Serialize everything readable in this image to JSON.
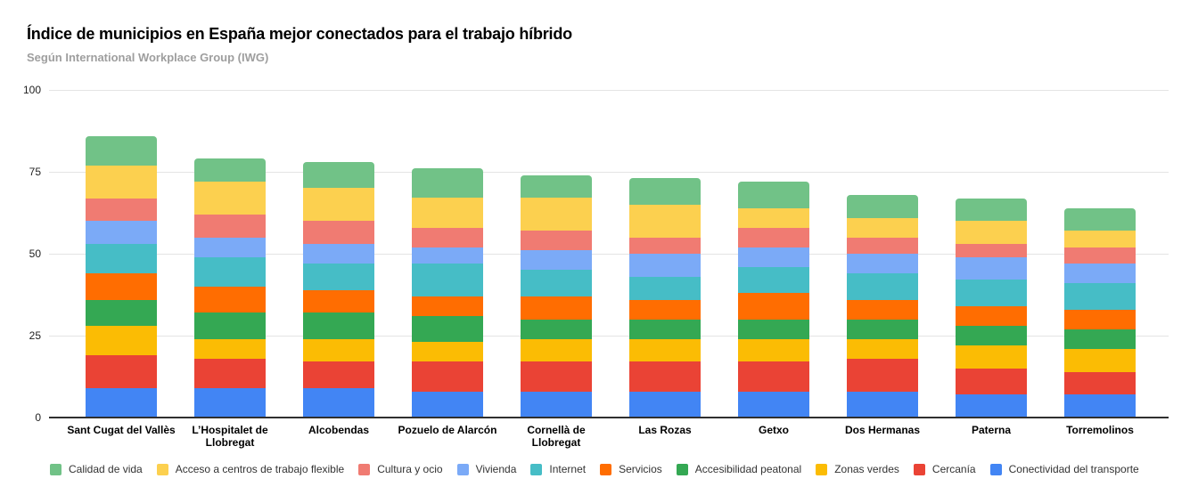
{
  "chart_data": {
    "type": "bar",
    "stacked": true,
    "title": "Índice de municipios en España mejor conectados para el trabajo híbrido",
    "subtitle": "Según International Workplace Group (IWG)",
    "categories": [
      "Sant Cugat del Vallès",
      "L’Hospitalet de Llobregat",
      "Alcobendas",
      "Pozuelo de Alarcón",
      "Cornellà de Llobregat",
      "Las Rozas",
      "Getxo",
      "Dos Hermanas",
      "Paterna",
      "Torremolinos"
    ],
    "totals": [
      86,
      79,
      78,
      76,
      74,
      73,
      72,
      68,
      67,
      64
    ],
    "series_stack_order": "bottom-to-top; legend shows reverse of this order",
    "series": [
      {
        "name": "Conectividad del transporte",
        "color": "#4285F4",
        "values": [
          9,
          9,
          9,
          8,
          8,
          8,
          8,
          8,
          7,
          7
        ]
      },
      {
        "name": "Cercanía",
        "color": "#EA4335",
        "values": [
          10,
          9,
          8,
          9,
          9,
          9,
          9,
          10,
          8,
          7
        ]
      },
      {
        "name": "Zonas verdes",
        "color": "#FBBC04",
        "values": [
          9,
          6,
          7,
          6,
          7,
          7,
          7,
          6,
          7,
          7
        ]
      },
      {
        "name": "Accesibilidad peatonal",
        "color": "#34A853",
        "values": [
          8,
          8,
          8,
          8,
          6,
          6,
          6,
          6,
          6,
          6
        ]
      },
      {
        "name": "Servicios",
        "color": "#FF6D01",
        "values": [
          8,
          8,
          7,
          6,
          7,
          6,
          8,
          6,
          6,
          6
        ]
      },
      {
        "name": "Internet",
        "color": "#46BDC6",
        "values": [
          9,
          9,
          8,
          10,
          8,
          7,
          8,
          8,
          8,
          8
        ]
      },
      {
        "name": "Vivienda",
        "color": "#7BAAF7",
        "values": [
          7,
          6,
          6,
          5,
          6,
          7,
          6,
          6,
          7,
          6
        ]
      },
      {
        "name": "Cultura y ocio",
        "color": "#F07B72",
        "values": [
          7,
          7,
          7,
          6,
          6,
          5,
          6,
          5,
          4,
          5
        ]
      },
      {
        "name": "Acceso a centros de trabajo flexible",
        "color": "#FCD04F",
        "values": [
          10,
          10,
          10,
          9,
          10,
          10,
          6,
          6,
          7,
          5
        ]
      },
      {
        "name": "Calidad de vida",
        "color": "#71C287",
        "values": [
          9,
          7,
          8,
          9,
          7,
          8,
          8,
          7,
          7,
          7
        ]
      }
    ],
    "yticks": [
      0,
      25,
      50,
      75,
      100
    ],
    "ylim": [
      0,
      100
    ],
    "grid": true,
    "legend_position": "bottom"
  },
  "colors": {
    "background": "#ffffff",
    "title": "#000000",
    "subtitle": "#9e9e9e",
    "gridline": "#e4e4e4",
    "axis_line": "#2f2f2f",
    "ytick_label": "#222222",
    "xtick_label": "#000000",
    "legend_label": "#333333"
  }
}
